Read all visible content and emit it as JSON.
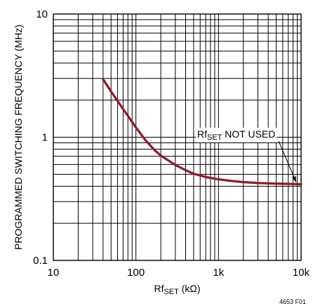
{
  "chart_data": {
    "type": "line",
    "title": "",
    "x_scale": "log",
    "y_scale": "log",
    "xlim": [
      10,
      10000
    ],
    "ylim": [
      0.1,
      10
    ],
    "grid": true,
    "x_ticks": [
      {
        "value": 10,
        "label": "10"
      },
      {
        "value": 100,
        "label": "100"
      },
      {
        "value": 1000,
        "label": "1k"
      },
      {
        "value": 10000,
        "label": "10k"
      }
    ],
    "y_ticks": [
      {
        "value": 0.1,
        "label": "0.1"
      },
      {
        "value": 1,
        "label": "1"
      },
      {
        "value": 10,
        "label": "10"
      }
    ],
    "xlabel": {
      "main": "Rf",
      "sub": "SET",
      "unit": " (kΩ)"
    },
    "ylabel": "PROGRAMMED SWITCHING FREQUENCY (MHz)",
    "series": [
      {
        "color": "#8b1a2b",
        "x": [
          40,
          50,
          60,
          70,
          80,
          100,
          130,
          170,
          200,
          300,
          400,
          500,
          700,
          1000,
          1500,
          2000,
          3000,
          5000,
          7000,
          10000
        ],
        "y": [
          2.95,
          2.35,
          1.97,
          1.69,
          1.49,
          1.2,
          0.95,
          0.78,
          0.71,
          0.595,
          0.54,
          0.505,
          0.475,
          0.455,
          0.44,
          0.432,
          0.425,
          0.42,
          0.418,
          0.415
        ]
      }
    ],
    "annotation": {
      "text_main": "Rf",
      "text_sub": "SET",
      "text_rest": " NOT USED",
      "points_to": {
        "x": 10000,
        "y": 0.415
      }
    },
    "figure_id": "4653 F01"
  }
}
